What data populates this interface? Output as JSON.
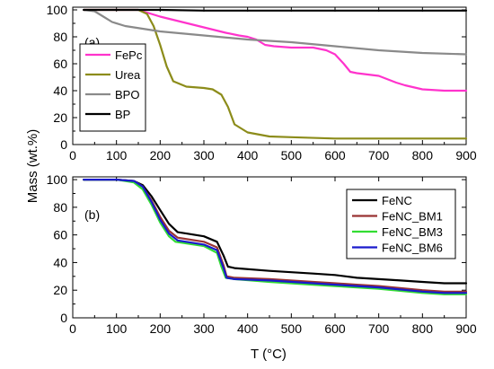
{
  "ylabel": "Mass  (wt.%)",
  "xlabel": "T (°C)",
  "chart_data": [
    {
      "type": "line",
      "panel_label": "(a)",
      "xlim": [
        0,
        900
      ],
      "ylim": [
        0,
        102
      ],
      "x_ticks": [
        0,
        100,
        200,
        300,
        400,
        500,
        600,
        700,
        800,
        900
      ],
      "y_ticks": [
        0,
        20,
        40,
        60,
        80,
        100
      ],
      "legend_position": "lower-left",
      "series": [
        {
          "name": "FePc",
          "color": "#ff33cc",
          "points": [
            [
              25,
              100
            ],
            [
              100,
              100
            ],
            [
              150,
              100
            ],
            [
              170,
              98
            ],
            [
              200,
              95
            ],
            [
              250,
              91
            ],
            [
              300,
              87
            ],
            [
              350,
              83
            ],
            [
              380,
              81
            ],
            [
              400,
              80
            ],
            [
              420,
              78
            ],
            [
              440,
              74
            ],
            [
              460,
              73
            ],
            [
              500,
              72
            ],
            [
              550,
              72
            ],
            [
              580,
              70
            ],
            [
              600,
              67
            ],
            [
              620,
              60
            ],
            [
              635,
              54
            ],
            [
              650,
              53
            ],
            [
              700,
              51
            ],
            [
              740,
              46
            ],
            [
              760,
              44
            ],
            [
              800,
              41
            ],
            [
              850,
              40
            ],
            [
              900,
              40
            ]
          ]
        },
        {
          "name": "Urea",
          "color": "#8c8c1a",
          "points": [
            [
              25,
              100
            ],
            [
              100,
              100
            ],
            [
              150,
              100
            ],
            [
              170,
              97
            ],
            [
              185,
              88
            ],
            [
              200,
              74
            ],
            [
              215,
              58
            ],
            [
              230,
              47
            ],
            [
              260,
              43
            ],
            [
              300,
              42
            ],
            [
              320,
              41
            ],
            [
              340,
              37
            ],
            [
              355,
              28
            ],
            [
              370,
              15
            ],
            [
              400,
              9
            ],
            [
              450,
              6
            ],
            [
              500,
              5.5
            ],
            [
              600,
              4.5
            ],
            [
              700,
              4.5
            ],
            [
              900,
              4.5
            ]
          ]
        },
        {
          "name": "BPO",
          "color": "#8a8a8a",
          "points": [
            [
              25,
              100
            ],
            [
              50,
              99
            ],
            [
              70,
              95
            ],
            [
              90,
              91
            ],
            [
              120,
              88
            ],
            [
              200,
              84
            ],
            [
              300,
              81
            ],
            [
              400,
              78
            ],
            [
              500,
              76
            ],
            [
              600,
              73
            ],
            [
              700,
              70
            ],
            [
              800,
              68
            ],
            [
              900,
              67
            ]
          ]
        },
        {
          "name": "BP",
          "color": "#000000",
          "points": [
            [
              25,
              100
            ],
            [
              100,
              100
            ],
            [
              200,
              100
            ],
            [
              300,
              99.5
            ],
            [
              400,
              99.5
            ],
            [
              500,
              99.5
            ],
            [
              600,
              99.5
            ],
            [
              700,
              99.5
            ],
            [
              800,
              99.5
            ],
            [
              900,
              99.5
            ]
          ]
        }
      ]
    },
    {
      "type": "line",
      "panel_label": "(b)",
      "xlim": [
        0,
        900
      ],
      "ylim": [
        0,
        102
      ],
      "x_ticks": [
        0,
        100,
        200,
        300,
        400,
        500,
        600,
        700,
        800,
        900
      ],
      "y_ticks": [
        0,
        20,
        40,
        60,
        80,
        100
      ],
      "legend_position": "top-right",
      "series": [
        {
          "name": "FeNC",
          "color": "#000000",
          "points": [
            [
              25,
              100
            ],
            [
              100,
              100
            ],
            [
              140,
              99
            ],
            [
              160,
              96
            ],
            [
              180,
              88
            ],
            [
              200,
              78
            ],
            [
              220,
              68
            ],
            [
              240,
              62
            ],
            [
              260,
              61
            ],
            [
              300,
              59
            ],
            [
              330,
              55
            ],
            [
              345,
              45
            ],
            [
              355,
              37
            ],
            [
              370,
              36
            ],
            [
              450,
              34
            ],
            [
              550,
              32
            ],
            [
              600,
              31
            ],
            [
              650,
              29
            ],
            [
              700,
              28
            ],
            [
              750,
              27
            ],
            [
              800,
              26
            ],
            [
              850,
              25
            ],
            [
              900,
              25
            ]
          ]
        },
        {
          "name": "FeNC_BM1",
          "color": "#993333",
          "points": [
            [
              25,
              100
            ],
            [
              100,
              100
            ],
            [
              140,
              99
            ],
            [
              160,
              95
            ],
            [
              180,
              85
            ],
            [
              200,
              73
            ],
            [
              220,
              63
            ],
            [
              240,
              58
            ],
            [
              300,
              55
            ],
            [
              330,
              51
            ],
            [
              345,
              38
            ],
            [
              352,
              30
            ],
            [
              370,
              29
            ],
            [
              450,
              28
            ],
            [
              550,
              26
            ],
            [
              600,
              25
            ],
            [
              650,
              24
            ],
            [
              700,
              23
            ],
            [
              800,
              20
            ],
            [
              850,
              19
            ],
            [
              900,
              19
            ]
          ]
        },
        {
          "name": "FeNC_BM3",
          "color": "#33dd33",
          "points": [
            [
              25,
              100
            ],
            [
              100,
              100
            ],
            [
              140,
              98
            ],
            [
              160,
              93
            ],
            [
              180,
              82
            ],
            [
              200,
              69
            ],
            [
              220,
              59
            ],
            [
              235,
              55
            ],
            [
              300,
              52
            ],
            [
              330,
              47
            ],
            [
              340,
              37
            ],
            [
              350,
              29
            ],
            [
              370,
              28
            ],
            [
              450,
              26
            ],
            [
              550,
              24
            ],
            [
              600,
              23
            ],
            [
              650,
              22
            ],
            [
              700,
              21
            ],
            [
              800,
              18
            ],
            [
              850,
              17
            ],
            [
              900,
              17
            ]
          ]
        },
        {
          "name": "FeNC_BM6",
          "color": "#1a1acc",
          "points": [
            [
              25,
              100
            ],
            [
              100,
              100
            ],
            [
              140,
              99
            ],
            [
              160,
              95
            ],
            [
              180,
              84
            ],
            [
              200,
              71
            ],
            [
              220,
              61
            ],
            [
              240,
              56
            ],
            [
              300,
              53
            ],
            [
              330,
              49
            ],
            [
              345,
              36
            ],
            [
              352,
              29
            ],
            [
              370,
              28
            ],
            [
              450,
              27
            ],
            [
              550,
              25
            ],
            [
              600,
              24
            ],
            [
              650,
              23
            ],
            [
              700,
              22
            ],
            [
              800,
              19
            ],
            [
              850,
              18
            ],
            [
              900,
              18
            ]
          ]
        }
      ]
    }
  ]
}
